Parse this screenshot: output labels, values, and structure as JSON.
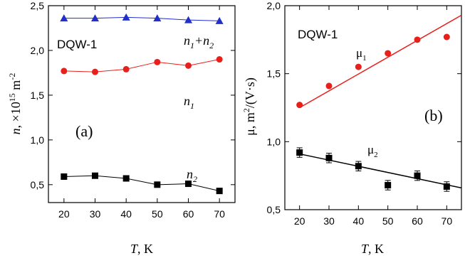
{
  "chart_data": [
    {
      "type": "scatter",
      "panel_label": "(a)",
      "sample_label": "DQW-1",
      "xlabel": "T, K",
      "ylabel": "n, ×10^15 m^-2",
      "xlim": [
        15,
        75
      ],
      "ylim": [
        0.3,
        2.5
      ],
      "x_ticks": [
        "20",
        "30",
        "40",
        "50",
        "60",
        "70"
      ],
      "y_ticks": [
        "0,5",
        "1,0",
        "1,5",
        "2,0",
        "2,5"
      ],
      "x": [
        20,
        30,
        40,
        50,
        60,
        70
      ],
      "series": [
        {
          "name": "n1+n2",
          "label_main": "n",
          "label_parts": [
            "1",
            "+n",
            "2"
          ],
          "marker": "triangle",
          "color": "#1f2fc8",
          "values": [
            2.36,
            2.36,
            2.37,
            2.36,
            2.34,
            2.33
          ],
          "connected": true
        },
        {
          "name": "n1",
          "label_main": "n",
          "label_parts": [
            "1"
          ],
          "marker": "circle",
          "color": "#e8201c",
          "values": [
            1.77,
            1.76,
            1.79,
            1.87,
            1.83,
            1.9
          ],
          "connected": true
        },
        {
          "name": "n2",
          "label_main": "n",
          "label_parts": [
            "2"
          ],
          "marker": "square",
          "color": "#000000",
          "values": [
            0.59,
            0.6,
            0.57,
            0.5,
            0.51,
            0.43
          ],
          "connected": true
        }
      ]
    },
    {
      "type": "scatter",
      "panel_label": "(b)",
      "sample_label": "DQW-1",
      "xlabel": "T, K",
      "ylabel": "μ, m²/(V·s)",
      "xlim": [
        15,
        75
      ],
      "ylim": [
        0.5,
        2.0
      ],
      "x_ticks": [
        "20",
        "30",
        "40",
        "50",
        "60",
        "70"
      ],
      "y_ticks": [
        "0,5",
        "1,0",
        "1,5",
        "2,0"
      ],
      "x": [
        20,
        30,
        40,
        50,
        60,
        70
      ],
      "series": [
        {
          "name": "μ1",
          "label_main": "μ",
          "label_parts": [
            "1"
          ],
          "marker": "circle",
          "color": "#e8201c",
          "values": [
            1.27,
            1.41,
            1.55,
            1.65,
            1.75,
            1.77
          ],
          "fit": [
            1.25,
            1.93
          ]
        },
        {
          "name": "μ2",
          "label_main": "μ",
          "label_parts": [
            "2"
          ],
          "marker": "square",
          "color": "#000000",
          "values": [
            0.92,
            0.88,
            0.82,
            0.68,
            0.75,
            0.67
          ],
          "error": 0.035,
          "fit": [
            0.91,
            0.66
          ]
        }
      ]
    }
  ]
}
